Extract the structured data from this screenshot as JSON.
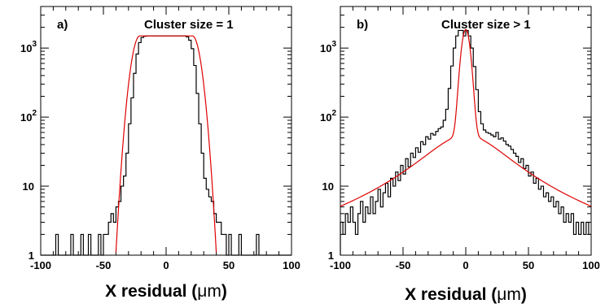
{
  "chart_data": [
    {
      "type": "histogram",
      "panel_label": "a)",
      "title": "Cluster size = 1",
      "xlabel_main": "X residual (",
      "xlabel_unit": "μm",
      "xlabel_end": ")",
      "xlim": [
        -100,
        100
      ],
      "ylim": [
        1,
        4000
      ],
      "yscale": "log",
      "xticks": [
        -100,
        -50,
        0,
        50,
        100
      ],
      "xtick_labels": [
        "-100",
        "-50",
        "0",
        "50",
        "100"
      ],
      "yticks": [
        {
          "value": 1,
          "base": "1",
          "exp": ""
        },
        {
          "value": 10,
          "base": "10",
          "exp": ""
        },
        {
          "value": 100,
          "base": "10",
          "exp": "2"
        },
        {
          "value": 1000,
          "base": "10",
          "exp": "3"
        }
      ],
      "fit": {
        "color": "#dd0000",
        "shape": "flat-top",
        "amplitude": 1500,
        "half_width": 21,
        "sigma": 5
      },
      "series": [
        {
          "style": "step",
          "color": "#000000",
          "x": [
            -100,
            -98,
            -96,
            -94,
            -92,
            -90,
            -88,
            -86,
            -84,
            -82,
            -80,
            -78,
            -76,
            -74,
            -72,
            -70,
            -68,
            -66,
            -64,
            -62,
            -60,
            -58,
            -56,
            -54,
            -52,
            -50,
            -48,
            -46,
            -44,
            -42,
            -40,
            -38,
            -36,
            -34,
            -32,
            -30,
            -28,
            -26,
            -24,
            -22,
            -20,
            -18,
            -16,
            -14,
            -12,
            -10,
            -8,
            -6,
            -4,
            -2,
            0,
            2,
            4,
            6,
            8,
            10,
            12,
            14,
            16,
            18,
            20,
            22,
            24,
            26,
            28,
            30,
            32,
            34,
            36,
            38,
            40,
            42,
            44,
            46,
            48,
            50,
            52,
            54,
            56,
            58,
            60,
            62,
            64,
            66,
            68,
            70,
            72,
            74,
            76,
            78,
            80,
            82,
            84,
            86,
            88,
            90,
            92,
            94,
            96,
            98
          ],
          "values": [
            1,
            1,
            1,
            1,
            1,
            1,
            2,
            1,
            1,
            1,
            1,
            1,
            2,
            1,
            1,
            1,
            2,
            1,
            1,
            2,
            1,
            1,
            1,
            2,
            1,
            2,
            2,
            3,
            4,
            3,
            5,
            6,
            10,
            14,
            30,
            80,
            190,
            430,
            820,
            1200,
            1420,
            1480,
            1500,
            1500,
            1500,
            1500,
            1500,
            1500,
            1500,
            1500,
            1500,
            1500,
            1500,
            1500,
            1500,
            1500,
            1500,
            1500,
            1450,
            1300,
            980,
            560,
            220,
            80,
            30,
            13,
            9,
            7,
            6,
            4,
            3,
            3,
            2,
            2,
            1,
            2,
            1,
            1,
            1,
            2,
            1,
            1,
            1,
            1,
            1,
            1,
            2,
            1,
            1,
            1,
            1,
            1,
            1,
            1,
            1,
            1,
            1,
            1,
            1,
            1
          ]
        }
      ]
    },
    {
      "type": "histogram",
      "panel_label": "b)",
      "title": "Cluster size > 1",
      "xlabel_main": "X residual (",
      "xlabel_unit": "μm",
      "xlabel_end": ")",
      "xlim": [
        -100,
        100
      ],
      "ylim": [
        1,
        4000
      ],
      "yscale": "log",
      "xticks": [
        -100,
        -50,
        0,
        50,
        100
      ],
      "xtick_labels": [
        "-100",
        "-50",
        "0",
        "50",
        "100"
      ],
      "yticks": [
        {
          "value": 1,
          "base": "1",
          "exp": ""
        },
        {
          "value": 10,
          "base": "10",
          "exp": ""
        },
        {
          "value": 100,
          "base": "10",
          "exp": "2"
        },
        {
          "value": 1000,
          "base": "10",
          "exp": "3"
        }
      ],
      "fit": {
        "color": "#dd0000",
        "shape": "core-plus-tails",
        "core_amplitude": 1800,
        "core_sigma": 3,
        "tail_amplitude": 55,
        "tail_width": 32
      },
      "series": [
        {
          "style": "step",
          "color": "#000000",
          "x": [
            -100,
            -98,
            -96,
            -94,
            -92,
            -90,
            -88,
            -86,
            -84,
            -82,
            -80,
            -78,
            -76,
            -74,
            -72,
            -70,
            -68,
            -66,
            -64,
            -62,
            -60,
            -58,
            -56,
            -54,
            -52,
            -50,
            -48,
            -46,
            -44,
            -42,
            -40,
            -38,
            -36,
            -34,
            -32,
            -30,
            -28,
            -26,
            -24,
            -22,
            -20,
            -18,
            -16,
            -14,
            -12,
            -10,
            -8,
            -6,
            -4,
            -2,
            0,
            2,
            4,
            6,
            8,
            10,
            12,
            14,
            16,
            18,
            20,
            22,
            24,
            26,
            28,
            30,
            32,
            34,
            36,
            38,
            40,
            42,
            44,
            46,
            48,
            50,
            52,
            54,
            56,
            58,
            60,
            62,
            64,
            66,
            68,
            70,
            72,
            74,
            76,
            78,
            80,
            82,
            84,
            86,
            88,
            90,
            92,
            94,
            96,
            98
          ],
          "values": [
            3,
            2,
            4,
            3,
            5,
            3,
            2,
            4,
            6,
            3,
            5,
            4,
            7,
            4,
            6,
            9,
            5,
            8,
            11,
            7,
            13,
            10,
            16,
            12,
            20,
            15,
            25,
            19,
            30,
            26,
            36,
            31,
            44,
            40,
            52,
            48,
            58,
            55,
            62,
            68,
            72,
            90,
            130,
            260,
            550,
            1000,
            1500,
            1800,
            1800,
            1500,
            1800,
            1500,
            1000,
            540,
            250,
            120,
            80,
            65,
            60,
            58,
            55,
            52,
            60,
            48,
            50,
            45,
            40,
            38,
            34,
            30,
            27,
            22,
            25,
            18,
            20,
            14,
            16,
            11,
            13,
            9,
            10,
            7,
            8,
            6,
            7,
            5,
            6,
            4,
            5,
            3,
            4,
            3,
            4,
            2,
            3,
            2,
            3,
            2,
            3,
            2
          ]
        }
      ]
    }
  ]
}
